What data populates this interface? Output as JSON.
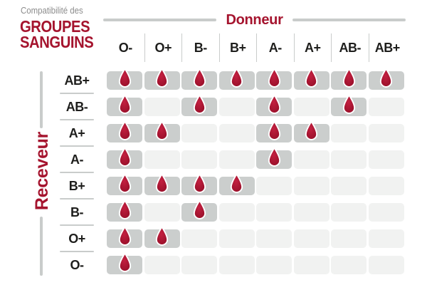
{
  "title": {
    "pretitle": "Compatibilité des",
    "line1": "GROUPES",
    "line2": "SANGUINS"
  },
  "axes": {
    "donor_label": "Donneur",
    "receiver_label": "Receveur"
  },
  "chart_data": {
    "type": "heatmap",
    "title": "Compatibilité des groupes sanguins",
    "columns_label": "Donneur",
    "rows_label": "Receveur",
    "columns": [
      "O-",
      "O+",
      "B-",
      "B+",
      "A-",
      "A+",
      "AB-",
      "AB+"
    ],
    "rows": [
      "AB+",
      "AB-",
      "A+",
      "A-",
      "B+",
      "B-",
      "O+",
      "O-"
    ],
    "matrix": [
      [
        1,
        1,
        1,
        1,
        1,
        1,
        1,
        1
      ],
      [
        1,
        0,
        1,
        0,
        1,
        0,
        1,
        0
      ],
      [
        1,
        1,
        0,
        0,
        1,
        1,
        0,
        0
      ],
      [
        1,
        0,
        0,
        0,
        1,
        0,
        0,
        0
      ],
      [
        1,
        1,
        1,
        1,
        0,
        0,
        0,
        0
      ],
      [
        1,
        0,
        1,
        0,
        0,
        0,
        0,
        0
      ],
      [
        1,
        1,
        0,
        0,
        0,
        0,
        0,
        0
      ],
      [
        1,
        0,
        0,
        0,
        0,
        0,
        0,
        0
      ]
    ],
    "marker_icon": "blood-drop-icon",
    "legend_position": "none",
    "grid": "cells-with-gaps"
  },
  "colors": {
    "accent": "#a5142e",
    "title_gray": "#8c8c8c",
    "label_dark": "#1e1e1c",
    "cell_filled": "#cbcecd",
    "cell_empty": "#f1f2f1",
    "line_gray": "#c9cccb",
    "drop_highlight": "#c32040",
    "drop_dark": "#970f29",
    "drop_stroke": "#ffffff"
  }
}
